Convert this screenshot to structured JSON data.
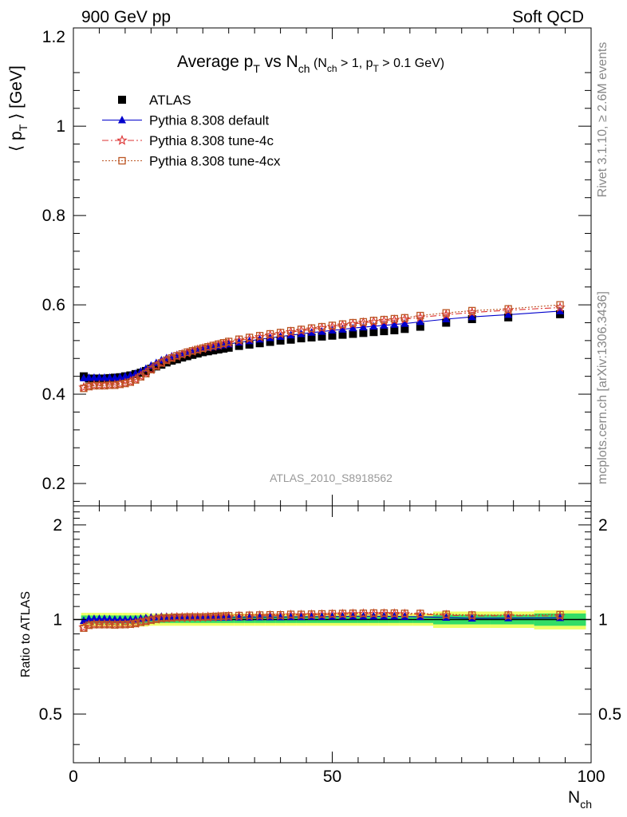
{
  "header": {
    "left": "900 GeV pp",
    "right": "Soft QCD"
  },
  "side_labels": {
    "rivet": "Rivet 3.1.10, ≥ 2.6M events",
    "source": "mcplots.cern.ch [arXiv:1306.3436]"
  },
  "chart_data": {
    "type": "scatter",
    "title": {
      "main": "Average p",
      "main_sub": "T",
      "mid": " vs N",
      "mid_sub": "ch",
      "cond_a": " (N",
      "cond_a_sub": "ch",
      "cond_b": " > 1, p",
      "cond_b_sub": "T",
      "cond_c": " > 0.1 GeV)"
    },
    "analysis_label": "ATLAS_2010_S8918562",
    "ylabel": {
      "left": "⟨ p",
      "sub": "T",
      "right": " ⟩ [GeV]"
    },
    "ratio_ylabel": "Ratio to ATLAS",
    "xlabel": {
      "main": "N",
      "sub": "ch"
    },
    "xlim": [
      0,
      100
    ],
    "ylim": [
      0.15,
      1.22
    ],
    "ratio_ylim": [
      0.35,
      2.3
    ],
    "x_ticks": [
      "0",
      "50",
      "100"
    ],
    "y_ticks": [
      "0.2",
      "0.4",
      "0.6",
      "0.8",
      "1",
      "1.2"
    ],
    "ratio_ticks": [
      "0.5",
      "1",
      "2"
    ],
    "legend_position": "top-left",
    "x": [
      2,
      3,
      4,
      5,
      6,
      7,
      8,
      9,
      10,
      11,
      12,
      13,
      14,
      15,
      16,
      17,
      18,
      19,
      20,
      21,
      22,
      23,
      24,
      25,
      26,
      27,
      28,
      29,
      30,
      32,
      34,
      36,
      38,
      40,
      42,
      44,
      46,
      48,
      50,
      52,
      54,
      56,
      58,
      60,
      62,
      64,
      67,
      72,
      77,
      84,
      94
    ],
    "series": [
      {
        "name": "ATLAS",
        "color": "#000000",
        "marker": "square",
        "values": [
          0.44,
          0.435,
          0.435,
          0.435,
          0.435,
          0.436,
          0.437,
          0.438,
          0.44,
          0.442,
          0.445,
          0.448,
          0.452,
          0.457,
          0.462,
          0.466,
          0.471,
          0.475,
          0.478,
          0.482,
          0.485,
          0.488,
          0.491,
          0.494,
          0.496,
          0.498,
          0.5,
          0.502,
          0.504,
          0.508,
          0.511,
          0.514,
          0.517,
          0.52,
          0.522,
          0.525,
          0.527,
          0.529,
          0.531,
          0.533,
          0.535,
          0.537,
          0.539,
          0.541,
          0.543,
          0.546,
          0.551,
          0.56,
          0.568,
          0.572,
          0.579
        ]
      },
      {
        "name": "Pythia 8.308 default",
        "color": "#0000cc",
        "marker": "triangle",
        "values": [
          0.436,
          0.437,
          0.437,
          0.437,
          0.437,
          0.437,
          0.437,
          0.438,
          0.44,
          0.442,
          0.446,
          0.451,
          0.457,
          0.464,
          0.47,
          0.476,
          0.481,
          0.485,
          0.488,
          0.491,
          0.494,
          0.497,
          0.499,
          0.502,
          0.504,
          0.506,
          0.508,
          0.51,
          0.512,
          0.516,
          0.519,
          0.523,
          0.526,
          0.529,
          0.532,
          0.535,
          0.538,
          0.54,
          0.543,
          0.545,
          0.548,
          0.55,
          0.552,
          0.554,
          0.556,
          0.558,
          0.562,
          0.568,
          0.573,
          0.578,
          0.586
        ]
      },
      {
        "name": "Pythia 8.308 tune-4c",
        "color": "#dd3333",
        "marker": "star",
        "values": [
          0.415,
          0.418,
          0.42,
          0.42,
          0.42,
          0.421,
          0.421,
          0.423,
          0.425,
          0.428,
          0.433,
          0.44,
          0.447,
          0.455,
          0.463,
          0.47,
          0.476,
          0.481,
          0.485,
          0.489,
          0.492,
          0.496,
          0.499,
          0.502,
          0.505,
          0.507,
          0.51,
          0.512,
          0.515,
          0.52,
          0.524,
          0.528,
          0.532,
          0.535,
          0.539,
          0.542,
          0.545,
          0.548,
          0.551,
          0.554,
          0.557,
          0.56,
          0.562,
          0.564,
          0.566,
          0.568,
          0.572,
          0.578,
          0.583,
          0.588,
          0.594
        ]
      },
      {
        "name": "Pythia 8.308 tune-4cx",
        "color": "#bb5522",
        "marker": "open-square",
        "values": [
          0.413,
          0.417,
          0.419,
          0.419,
          0.419,
          0.42,
          0.42,
          0.422,
          0.424,
          0.427,
          0.432,
          0.439,
          0.446,
          0.455,
          0.463,
          0.47,
          0.476,
          0.481,
          0.486,
          0.49,
          0.494,
          0.497,
          0.5,
          0.503,
          0.506,
          0.509,
          0.512,
          0.515,
          0.518,
          0.523,
          0.527,
          0.531,
          0.535,
          0.538,
          0.542,
          0.545,
          0.548,
          0.551,
          0.554,
          0.557,
          0.56,
          0.562,
          0.565,
          0.567,
          0.569,
          0.571,
          0.576,
          0.582,
          0.587,
          0.591,
          0.6
        ]
      }
    ],
    "colors": {
      "band_inner": "#33dd66",
      "band_outer": "#eeff66"
    }
  }
}
